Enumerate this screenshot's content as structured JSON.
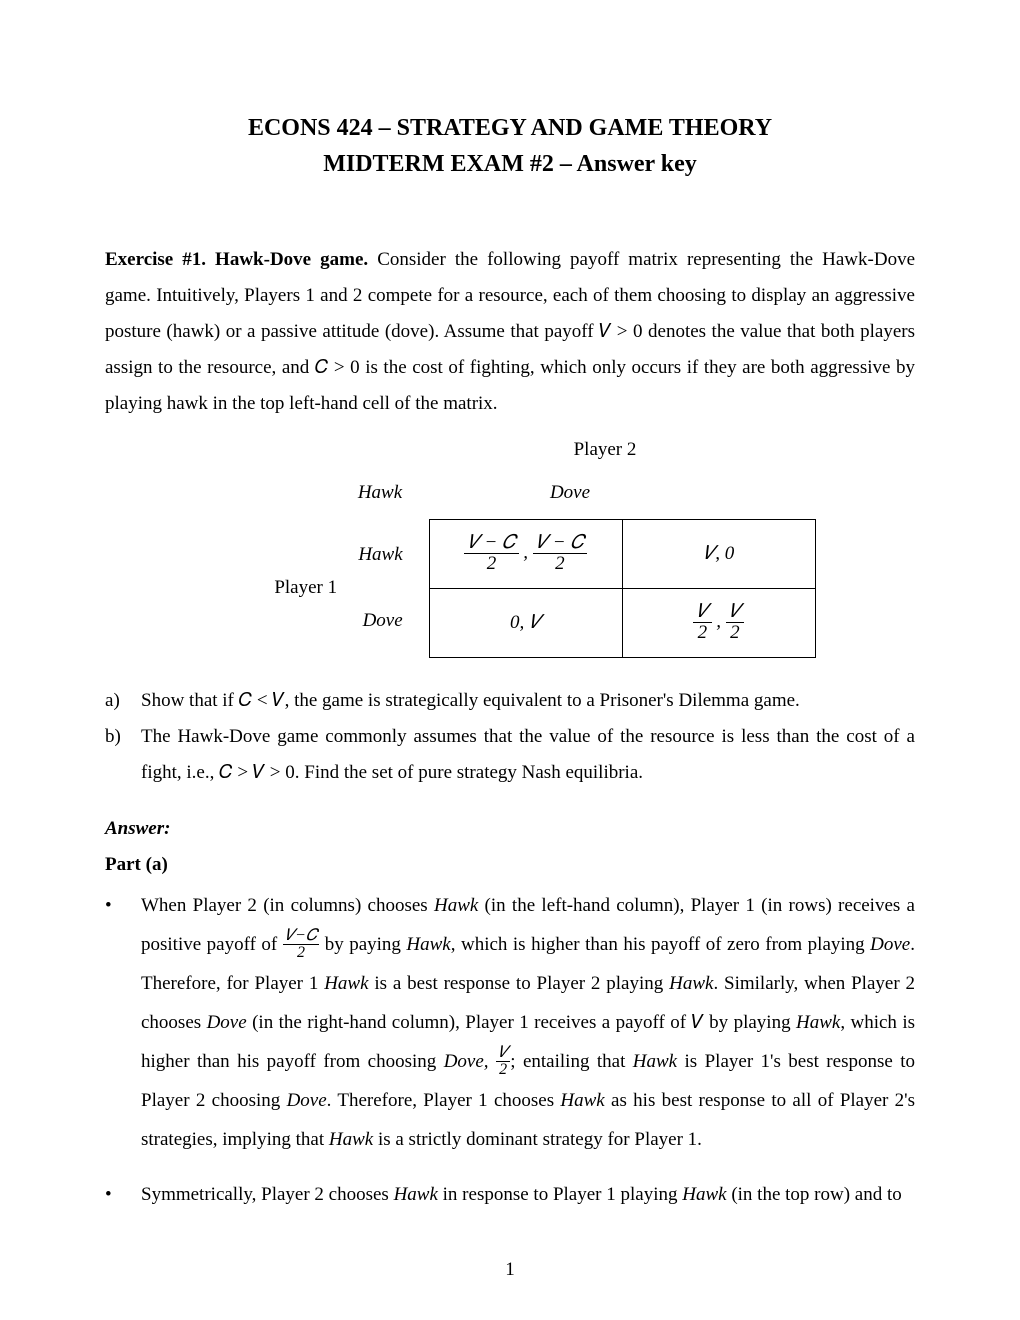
{
  "title": "ECONS 424 – STRATEGY AND GAME THEORY",
  "subtitle": "MIDTERM EXAM #2 – Answer key",
  "exercise_heading": "Exercise #1. Hawk-Dove game.",
  "intro_text": " Consider the following payoff matrix representing the Hawk-Dove game. Intuitively, Players 1 and 2 compete for a resource, each of them choosing to display an aggressive posture (hawk) or a passive attitude (dove). Assume that payoff  𝑉 > 0  denotes the value that both players assign to the resource, and  𝐶 > 0  is the cost of fighting, which only occurs if they are both aggressive by playing hawk in the top left-hand cell of the matrix.",
  "matrix": {
    "player2_label": "Player 2",
    "player1_label": "Player 1",
    "col_headers": [
      "Hawk",
      "Dove"
    ],
    "row_headers": [
      "Hawk",
      "Dove"
    ],
    "cells": {
      "hh_num1": "𝑉 − 𝐶",
      "hh_den1": "2",
      "hh_num2": "𝑉 − 𝐶",
      "hh_den2": "2",
      "hd": "𝑉, 0",
      "dh": "0, 𝑉",
      "dd_num1": "𝑉",
      "dd_den1": "2",
      "dd_num2": "𝑉",
      "dd_den2": "2"
    }
  },
  "questions": {
    "a": "Show that if  𝐶 < 𝑉, the game is strategically equivalent to a Prisoner's Dilemma game.",
    "b": "The Hawk-Dove game commonly assumes that the value of the resource is less than the cost of a fight, i.e.,  𝐶 > 𝑉 > 0. Find the set of pure strategy Nash equilibria."
  },
  "answer_label": "Answer:",
  "part_a_label": "Part (a)",
  "bullets": {
    "b1_pre": "When Player 2 (in columns) chooses ",
    "b1_hawk1": "Hawk",
    "b1_mid1": " (in the left-hand column), Player 1 (in rows) receives a positive payoff of ",
    "b1_frac_num": "𝑉−𝐶",
    "b1_frac_den": "2",
    "b1_mid2": " by paying ",
    "b1_hawk2": "Hawk",
    "b1_mid3": ", which is higher than his payoff of zero from playing ",
    "b1_dove1": "Dove",
    "b1_mid4": ". Therefore, for Player 1 ",
    "b1_hawk3": "Hawk",
    "b1_mid5": " is a best response to Player 2 playing ",
    "b1_hawk4": "Hawk",
    "b1_mid6": ". Similarly, when Player 2 chooses ",
    "b1_dove2": "Dove",
    "b1_mid7": " (in the right-hand column), Player 1 receives a payoff of  𝑉  by playing ",
    "b1_hawk5": "Hawk",
    "b1_mid8": ", which is higher than his payoff from choosing ",
    "b1_dove3": "Dove,",
    "b1_mid9": "  ",
    "b1_frac2_num": "𝑉",
    "b1_frac2_den": "2",
    "b1_mid10": "; entailing that ",
    "b1_hawk6": "Hawk",
    "b1_mid11": " is Player 1's best response to Player 2 choosing ",
    "b1_dove4": "Dove",
    "b1_mid12": ". Therefore, Player 1 chooses ",
    "b1_hawk7": "Hawk",
    "b1_mid13": " as his best response to all of Player 2's strategies, implying that ",
    "b1_hawk8": "Hawk",
    "b1_mid14": " is a strictly dominant strategy for Player 1.",
    "b2_pre": "Symmetrically, Player 2 chooses ",
    "b2_hawk1": "Hawk",
    "b2_mid1": " in response to Player 1 playing ",
    "b2_hawk2": "Hawk",
    "b2_mid2": " (in the top row) and to"
  },
  "page_number": "1"
}
